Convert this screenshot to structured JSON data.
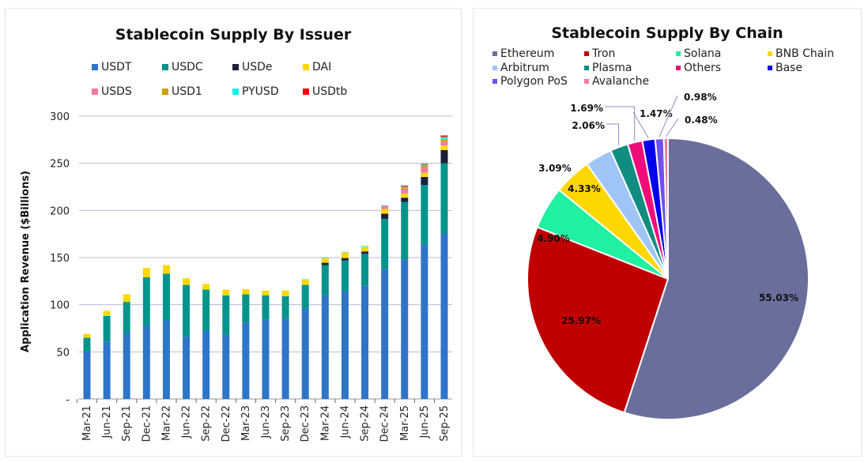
{
  "chart_data": [
    {
      "type": "bar",
      "stacked": true,
      "title": "Stablecoin Supply By Issuer",
      "ylabel": "Application Revenue ($Billions)",
      "xlabel": "",
      "ylim": [
        0,
        300
      ],
      "yticks": [
        "-",
        "50",
        "100",
        "150",
        "200",
        "250",
        "300"
      ],
      "grid": true,
      "legend": "top",
      "categories": [
        "Mar-21",
        "Jun-21",
        "Sep-21",
        "Dec-21",
        "Mar-22",
        "Jun-22",
        "Sep-22",
        "Dec-22",
        "Mar-23",
        "Jun-23",
        "Sep-23",
        "Dec-23",
        "Mar-24",
        "Jun-24",
        "Sep-24",
        "Dec-24",
        "Mar-25",
        "Jun-25",
        "Sep-25"
      ],
      "series": [
        {
          "name": "USDT",
          "color": "#2E75C9",
          "values": [
            50,
            61,
            70,
            78,
            83,
            66,
            72,
            68,
            81,
            84,
            85,
            96,
            110,
            114,
            120,
            138,
            148,
            164,
            176
          ]
        },
        {
          "name": "USDC",
          "color": "#00948C",
          "values": [
            15,
            27,
            33,
            51,
            50,
            55,
            44,
            42,
            30,
            26,
            24,
            25,
            32,
            33,
            34,
            53,
            61,
            63,
            74
          ]
        },
        {
          "name": "USDe",
          "color": "#1E1E3C",
          "values": [
            0,
            0,
            0,
            0,
            0,
            0,
            0,
            0,
            0,
            0,
            0,
            0,
            2.5,
            2.5,
            2.5,
            5.5,
            4.5,
            8.5,
            14
          ]
        },
        {
          "name": "DAI",
          "color": "#FFD700",
          "values": [
            4,
            5.5,
            8,
            10,
            9,
            7,
            6,
            6,
            5.5,
            5,
            6,
            5.5,
            5,
            6,
            5,
            5,
            4.5,
            4.5,
            5
          ]
        },
        {
          "name": "USDS",
          "color": "#F07AA0",
          "values": [
            0,
            0,
            0,
            0,
            0,
            0,
            0,
            0,
            0,
            0,
            0,
            0,
            0,
            0,
            0,
            3.5,
            5,
            5.5,
            4
          ]
        },
        {
          "name": "USD1",
          "color": "#D4A000",
          "values": [
            0,
            0,
            0,
            0,
            0,
            0,
            0,
            0,
            0,
            0,
            0,
            0,
            0,
            0,
            0,
            0,
            1.5,
            2,
            2.5
          ]
        },
        {
          "name": "PYUSD",
          "color": "#18F0F0",
          "values": [
            0,
            0,
            0,
            0,
            0,
            0,
            0,
            0,
            0,
            0,
            0,
            0.5,
            0.5,
            0.5,
            0.8,
            0.5,
            0.8,
            1,
            2.5
          ]
        },
        {
          "name": "USDtb",
          "color": "#FF0000",
          "values": [
            0,
            0,
            0,
            0,
            0,
            0,
            0,
            0,
            0,
            0,
            0,
            0,
            0,
            0,
            0,
            0,
            1,
            0.8,
            1.5
          ]
        }
      ]
    },
    {
      "type": "pie",
      "title": "Stablecoin Supply By Chain",
      "legend": "top",
      "slices": [
        {
          "name": "Ethereum",
          "value": 55.03,
          "label": "55.03%",
          "color": "#6A6E9C"
        },
        {
          "name": "Tron",
          "value": 25.97,
          "label": "25.97%",
          "color": "#C00000"
        },
        {
          "name": "Solana",
          "value": 4.9,
          "label": "4.90%",
          "color": "#20F0A0"
        },
        {
          "name": "BNB Chain",
          "value": 4.33,
          "label": "4.33%",
          "color": "#FFD700"
        },
        {
          "name": "Arbitrum",
          "value": 3.09,
          "label": "3.09%",
          "color": "#9EC5F5"
        },
        {
          "name": "Plasma",
          "value": 2.06,
          "label": "2.06%",
          "color": "#108C80"
        },
        {
          "name": "Others",
          "value": 1.69,
          "label": "1.69%",
          "color": "#F00C78"
        },
        {
          "name": "Base",
          "value": 1.47,
          "label": "1.47%",
          "color": "#0000EE"
        },
        {
          "name": "Polygon PoS",
          "value": 0.98,
          "label": "0.98%",
          "color": "#7050F0"
        },
        {
          "name": "Avalanche",
          "value": 0.48,
          "label": "0.48%",
          "color": "#F07AA0"
        }
      ]
    }
  ]
}
